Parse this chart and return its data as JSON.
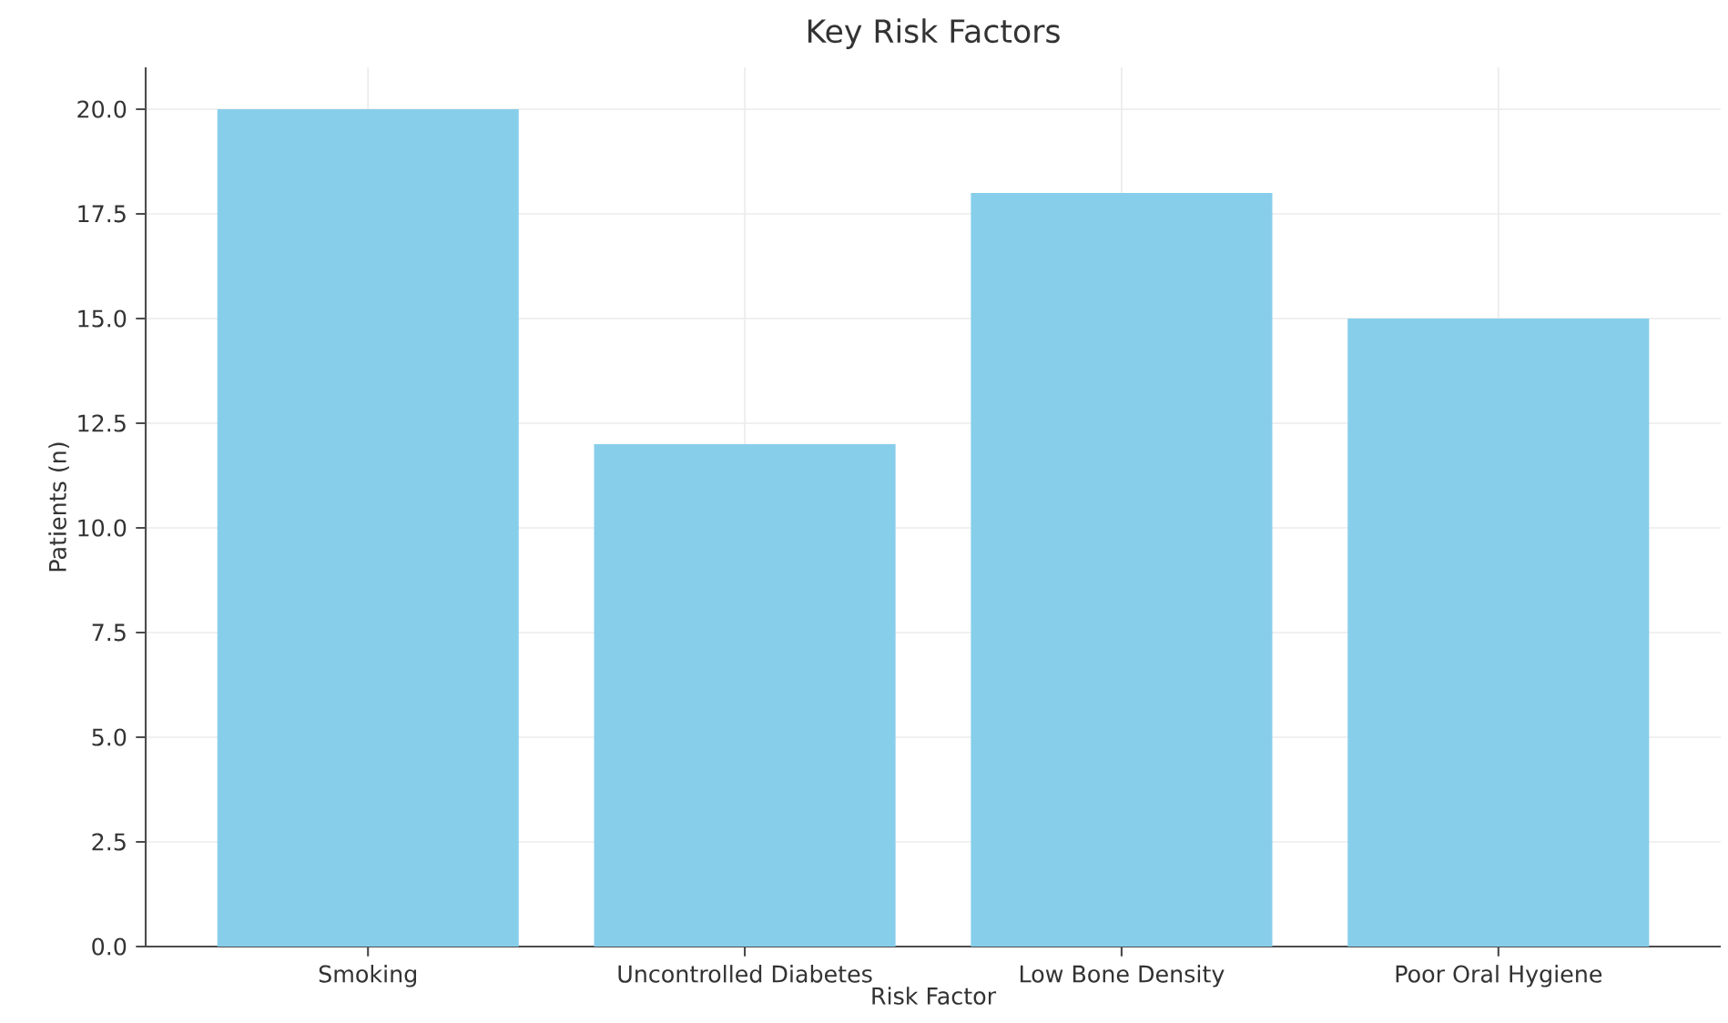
{
  "chart_data": {
    "type": "bar",
    "title": "Key Risk Factors",
    "xlabel": "Risk Factor",
    "ylabel": "Patients (n)",
    "categories": [
      "Smoking",
      "Uncontrolled Diabetes",
      "Low Bone Density",
      "Poor Oral Hygiene"
    ],
    "values": [
      20,
      12,
      18,
      15
    ],
    "color": "#87ceeb",
    "ylim": [
      0,
      21
    ],
    "yticks": [
      {
        "value": 0,
        "label": "0.0"
      },
      {
        "value": 2.5,
        "label": "2.5"
      },
      {
        "value": 5,
        "label": "5.0"
      },
      {
        "value": 7.5,
        "label": "7.5"
      },
      {
        "value": 10,
        "label": "10.0"
      },
      {
        "value": 12.5,
        "label": "12.5"
      },
      {
        "value": 15,
        "label": "15.0"
      },
      {
        "value": 17.5,
        "label": "17.5"
      },
      {
        "value": 20,
        "label": "20.0"
      }
    ],
    "grid": true
  }
}
